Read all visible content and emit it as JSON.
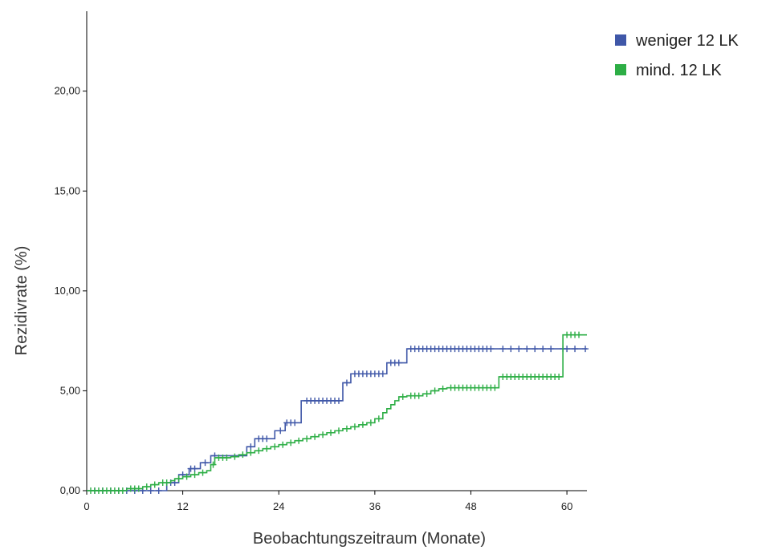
{
  "chart_data": {
    "type": "line",
    "xlabel": "Beobachtungszeitraum (Monate)",
    "ylabel": "Rezidivrate (%)",
    "xlim": [
      0,
      62.5
    ],
    "ylim": [
      0,
      24
    ],
    "x_ticks": [
      0,
      12,
      24,
      36,
      48,
      60
    ],
    "x_tick_labels": [
      "0",
      "12",
      "24",
      "36",
      "48",
      "60"
    ],
    "y_ticks": [
      0,
      5,
      10,
      15,
      20
    ],
    "y_tick_labels": [
      "0,00",
      "5,00",
      "10,00",
      "15,00",
      "20,00"
    ],
    "grid": false,
    "legend_position": "top-right",
    "step": true,
    "censor_marker": "+",
    "series": [
      {
        "name": "weniger 12 LK",
        "color": "#3f57a8",
        "steps": [
          [
            0,
            0
          ],
          [
            10,
            0.4
          ],
          [
            11.5,
            0.8
          ],
          [
            12.8,
            1.1
          ],
          [
            14.2,
            1.4
          ],
          [
            15.5,
            1.75
          ],
          [
            20,
            2.2
          ],
          [
            21,
            2.6
          ],
          [
            23.5,
            3.0
          ],
          [
            24.8,
            3.4
          ],
          [
            26.8,
            4.5
          ],
          [
            32,
            5.4
          ],
          [
            33,
            5.85
          ],
          [
            37.5,
            6.4
          ],
          [
            40,
            7.1
          ],
          [
            62.5,
            7.1
          ]
        ],
        "censored": [
          1,
          2,
          3,
          4,
          5,
          6,
          7,
          8,
          9,
          10.5,
          11,
          12,
          13,
          13.5,
          14.8,
          16,
          20.5,
          21.5,
          22,
          22.5,
          24.2,
          25,
          25.5,
          26,
          27.5,
          28,
          28.5,
          29,
          29.5,
          30,
          30.5,
          31,
          31.5,
          32.5,
          33.5,
          34,
          34.5,
          35,
          35.5,
          36,
          36.5,
          37,
          38,
          38.5,
          39,
          40.5,
          41,
          41.5,
          42,
          42.5,
          43,
          43.5,
          44,
          44.5,
          45,
          45.5,
          46,
          46.5,
          47,
          47.5,
          48,
          48.5,
          49,
          49.5,
          50,
          50.5,
          52,
          53,
          54,
          55,
          56,
          57,
          58,
          59.5,
          60,
          61,
          62.3
        ]
      },
      {
        "name": "mind. 12 LK",
        "color": "#2dae45",
        "steps": [
          [
            0,
            0
          ],
          [
            5,
            0.1
          ],
          [
            7,
            0.2
          ],
          [
            8,
            0.3
          ],
          [
            9,
            0.4
          ],
          [
            10.5,
            0.5
          ],
          [
            11,
            0.6
          ],
          [
            12,
            0.7
          ],
          [
            13,
            0.8
          ],
          [
            14,
            0.9
          ],
          [
            15,
            1.0
          ],
          [
            15.5,
            1.3
          ],
          [
            16,
            1.65
          ],
          [
            18,
            1.7
          ],
          [
            19,
            1.8
          ],
          [
            20,
            1.9
          ],
          [
            21,
            2.0
          ],
          [
            22,
            2.1
          ],
          [
            23,
            2.2
          ],
          [
            24,
            2.3
          ],
          [
            25,
            2.4
          ],
          [
            26,
            2.5
          ],
          [
            27,
            2.6
          ],
          [
            28,
            2.7
          ],
          [
            29,
            2.8
          ],
          [
            30,
            2.9
          ],
          [
            31,
            3.0
          ],
          [
            32,
            3.1
          ],
          [
            33,
            3.2
          ],
          [
            34,
            3.3
          ],
          [
            35,
            3.4
          ],
          [
            36,
            3.6
          ],
          [
            37,
            3.9
          ],
          [
            37.5,
            4.1
          ],
          [
            38,
            4.3
          ],
          [
            38.5,
            4.5
          ],
          [
            39,
            4.7
          ],
          [
            40,
            4.75
          ],
          [
            42,
            4.85
          ],
          [
            43,
            5.0
          ],
          [
            44,
            5.1
          ],
          [
            45,
            5.15
          ],
          [
            51.5,
            5.7
          ],
          [
            59.5,
            7.8
          ],
          [
            62.5,
            7.8
          ]
        ],
        "censored": [
          0.5,
          1,
          1.5,
          2,
          2.5,
          3,
          3.5,
          4,
          4.5,
          5.5,
          6,
          6.5,
          7.5,
          8.5,
          9.5,
          10,
          11.5,
          12.5,
          13.5,
          14.5,
          15.8,
          16.5,
          17,
          17.5,
          18.5,
          19.5,
          20.5,
          21.5,
          22.5,
          23.5,
          24.5,
          25.5,
          26.5,
          27.5,
          28.5,
          29.5,
          30.5,
          31.5,
          32.5,
          33.5,
          34.5,
          35.5,
          36.5,
          39.5,
          40.5,
          41,
          41.5,
          42.5,
          43.5,
          44.5,
          45.5,
          46,
          46.5,
          47,
          47.5,
          48,
          48.5,
          49,
          49.5,
          50,
          50.5,
          51,
          52,
          52.5,
          53,
          53.5,
          54,
          54.5,
          55,
          55.5,
          56,
          56.5,
          57,
          57.5,
          58,
          58.5,
          59,
          60,
          60.5,
          61,
          61.5
        ]
      }
    ]
  }
}
